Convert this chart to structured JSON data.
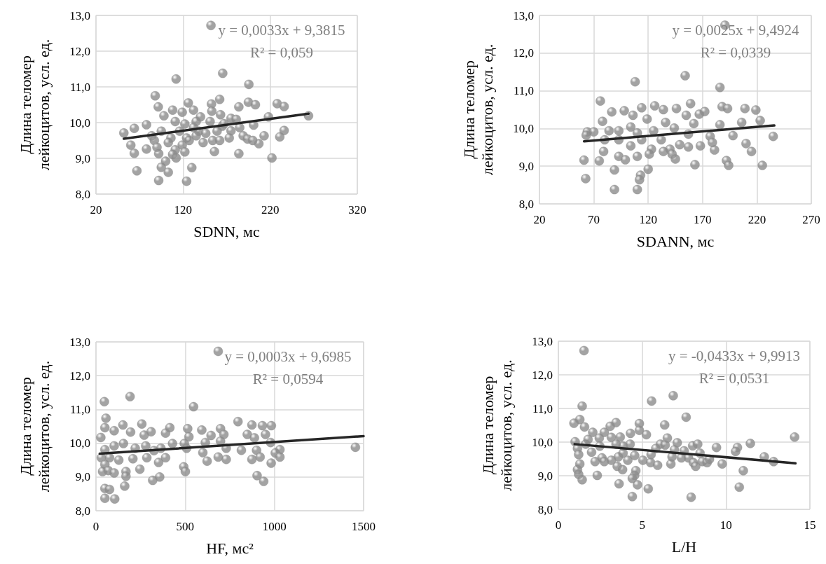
{
  "chart_data": [
    {
      "type": "scatter",
      "xlabel": "SDNN, мс",
      "ylabel": "Длина теломер\nлейкоцитов, усл. ед.",
      "xlim": [
        20,
        320
      ],
      "xticks": [
        20,
        120,
        220,
        320
      ],
      "ylim": [
        8,
        13
      ],
      "yticks": [
        {
          "value": 8,
          "label": "8,0"
        },
        {
          "value": 9,
          "label": "9,0"
        },
        {
          "value": 10,
          "label": "10,0"
        },
        {
          "value": 11,
          "label": "11,0"
        },
        {
          "value": 12,
          "label": "12,0"
        },
        {
          "value": 13,
          "label": "13,0"
        }
      ],
      "grid": true,
      "annotations": [
        "y = 0,0033x + 9,3815",
        "R² = 0,059"
      ],
      "series": [
        {
          "marker": "circle",
          "color": "#8c8c8c",
          "x": [
            152,
            165.5,
            112,
            195.5,
            88,
            162,
            195,
            203,
            228,
            236,
            184,
            91.5,
            126,
            152.6,
            264,
            218,
            52,
            64,
            78,
            236,
            213,
            231,
            207,
            201,
            185,
            175,
            60,
            64,
            78,
            92,
            156,
            184,
            222,
            100,
            95,
            103,
            130,
            67,
            92,
            124,
            112,
            98,
            108,
            119,
            132,
            140,
            153,
            163,
            122,
            135,
            151,
            165,
            175,
            189,
            194,
            200,
            95,
            106,
            116,
            124,
            135,
            143,
            154,
            162,
            173,
            87,
            90,
            103,
            111,
            119,
            127,
            138,
            146,
            159,
            167,
            181,
            84,
            108,
            122,
            132,
            111
          ],
          "values": [
            12.72,
            11.38,
            11.22,
            11.07,
            10.75,
            10.65,
            10.57,
            10.5,
            10.53,
            10.45,
            10.44,
            10.44,
            10.55,
            10.52,
            10.19,
            10.16,
            9.71,
            9.84,
            9.94,
            9.78,
            9.63,
            9.6,
            9.41,
            9.93,
            9.86,
            10.12,
            9.37,
            9.14,
            9.26,
            9.13,
            9.19,
            9.13,
            9.01,
            8.92,
            8.75,
            8.61,
            8.74,
            8.65,
            8.38,
            8.36,
            9.01,
            10.19,
            10.35,
            10.29,
            10.35,
            10.16,
            10.32,
            10.22,
            9.96,
            10.03,
            10.03,
            9.9,
            9.77,
            9.63,
            9.54,
            9.5,
            9.76,
            9.57,
            9.76,
            9.57,
            9.63,
            9.44,
            9.5,
            9.5,
            9.57,
            9.5,
            9.31,
            9.44,
            9.24,
            9.37,
            9.5,
            9.76,
            9.7,
            9.76,
            9.97,
            10.09,
            9.63,
            9.11,
            9.18,
            9.86,
            10.03
          ]
        },
        {
          "type": "line",
          "color": "#262626",
          "x": [
            52,
            264
          ],
          "values": [
            9.55,
            10.25
          ]
        }
      ]
    },
    {
      "type": "scatter",
      "xlabel": "SDANN, мс",
      "ylabel": "Длина теломер\nлейкоцитов, усл. ед.",
      "xlim": [
        20,
        270
      ],
      "xticks": [
        20,
        70,
        120,
        170,
        220,
        270
      ],
      "ylim": [
        8,
        13
      ],
      "yticks": [
        {
          "value": 8,
          "label": "8,0"
        },
        {
          "value": 9,
          "label": "9,0"
        },
        {
          "value": 10,
          "label": "10,0"
        },
        {
          "value": 11,
          "label": "11,0"
        },
        {
          "value": 12,
          "label": "12,0"
        },
        {
          "value": 13,
          "label": "13,0"
        }
      ],
      "grid": true,
      "annotations": [
        "y = 0,0025x + 9,4924",
        "R² = 0,0339"
      ],
      "series": [
        {
          "marker": "circle",
          "color": "#8c8c8c",
          "x": [
            190.6,
            154,
            108,
            186,
            76,
            159,
            126,
            114,
            188,
            193,
            209,
            219,
            206,
            223,
            186,
            235,
            198,
            210,
            215,
            181,
            61,
            62.5,
            75,
            89,
            89,
            110,
            113,
            120,
            112,
            145,
            163,
            192,
            194,
            225,
            64,
            70,
            63,
            78,
            86.5,
            98,
            106,
            119,
            134,
            146,
            155,
            167,
            172,
            136,
            162,
            93,
            104,
            125,
            144,
            157,
            177,
            80,
            93,
            104,
            114,
            123,
            132,
            140,
            149,
            157,
            168,
            79,
            93,
            99,
            110,
            121,
            134,
            142,
            179,
            84,
            110
          ],
          "values": [
            12.74,
            11.4,
            11.24,
            11.09,
            10.73,
            10.66,
            10.6,
            10.55,
            10.58,
            10.53,
            10.53,
            10.49,
            10.16,
            10.21,
            10.1,
            9.79,
            9.81,
            9.6,
            9.39,
            9.43,
            9.16,
            8.67,
            9.14,
            8.9,
            8.38,
            8.38,
            8.76,
            8.92,
            8.64,
            9.19,
            9.04,
            9.15,
            9.02,
            9.02,
            9.91,
            9.91,
            9.82,
            10.19,
            10.44,
            10.47,
            10.35,
            10.25,
            10.5,
            10.53,
            10.35,
            10.38,
            10.45,
            10.16,
            10.13,
            9.94,
            10.04,
            9.94,
            10.01,
            9.85,
            9.79,
            9.7,
            9.7,
            9.54,
            9.7,
            9.45,
            9.7,
            9.45,
            9.57,
            9.51,
            9.54,
            9.39,
            9.26,
            9.17,
            9.26,
            9.32,
            9.39,
            9.32,
            9.63,
            9.94,
            9.88
          ]
        },
        {
          "type": "line",
          "color": "#262626",
          "x": [
            61,
            236
          ],
          "values": [
            9.66,
            10.08
          ]
        }
      ]
    },
    {
      "type": "scatter",
      "xlabel": "HF, мс²",
      "ylabel": "Длина теломер\nлейкоцитов, усл. ед.",
      "xlim": [
        0,
        1500
      ],
      "xticks": [
        0,
        500,
        1000,
        1500
      ],
      "ylim": [
        8,
        13
      ],
      "yticks": [
        {
          "value": 8,
          "label": "8,0"
        },
        {
          "value": 9,
          "label": "9,0"
        },
        {
          "value": 10,
          "label": "10,0"
        },
        {
          "value": 11,
          "label": "11,0"
        },
        {
          "value": 12,
          "label": "12,0"
        },
        {
          "value": 13,
          "label": "13,0"
        }
      ],
      "grid": true,
      "annotations": [
        "y = 0,0003x + 9,6985",
        "R² = 0,0594"
      ],
      "series": [
        {
          "marker": "circle",
          "color": "#8c8c8c",
          "x": [
            685,
            191,
            47,
            547,
            56,
            796,
            151,
            257,
            874,
            933,
            983,
            50,
            414,
            514,
            593,
            698,
            1454,
            27,
            102,
            194,
            309,
            270,
            390,
            521,
            645,
            717,
            848,
            888,
            950,
            979,
            1031,
            1005,
            1031,
            900,
            815,
            920,
            982,
            874,
            730,
            685,
            623,
            599,
            730,
            613,
            698,
            508,
            429,
            364,
            279,
            220,
            154,
            102,
            50,
            30,
            76,
            128,
            207,
            285,
            351,
            390,
            50,
            37,
            69,
            102,
            168,
            168,
            246,
            492,
            501,
            318,
            357,
            161,
            50,
            76,
            50,
            105,
            903,
            940,
            495,
            325
          ],
          "values": [
            12.72,
            11.38,
            11.23,
            11.08,
            10.74,
            10.64,
            10.54,
            10.57,
            10.54,
            10.52,
            10.52,
            10.46,
            10.46,
            10.43,
            10.39,
            10.43,
            9.88,
            10.17,
            10.37,
            10.33,
            10.34,
            10.24,
            10.3,
            10.19,
            10.23,
            10.26,
            10.26,
            10.16,
            10.26,
            10.02,
            9.81,
            9.71,
            9.59,
            9.79,
            9.79,
            9.59,
            9.41,
            9.52,
            9.52,
            9.59,
            9.47,
            9.72,
            9.85,
            10.02,
            10.06,
            9.85,
            9.99,
            9.85,
            9.92,
            9.85,
            9.99,
            9.92,
            9.81,
            9.57,
            9.57,
            9.5,
            9.54,
            9.57,
            9.43,
            9.57,
            9.37,
            9.16,
            9.19,
            9.12,
            9.16,
            9.02,
            9.23,
            9.3,
            9.16,
            8.9,
            9.0,
            8.73,
            8.66,
            8.63,
            8.37,
            8.35,
            9.04,
            8.87,
            9.99,
            9.78
          ]
        },
        {
          "type": "line",
          "color": "#262626",
          "x": [
            21,
            1500
          ],
          "values": [
            9.69,
            10.21
          ]
        }
      ]
    },
    {
      "type": "scatter",
      "xlabel": "L/H",
      "ylabel": "Длина теломер\nлейкоцитов, усл. ед.",
      "xlim": [
        0,
        15
      ],
      "xticks": [
        0,
        5,
        10,
        15
      ],
      "ylim": [
        8,
        13
      ],
      "yticks": [
        {
          "value": 8,
          "label": "8,0"
        },
        {
          "value": 9,
          "label": "9,0"
        },
        {
          "value": 10,
          "label": "10,0"
        },
        {
          "value": 11,
          "label": "11,0"
        },
        {
          "value": 12,
          "label": "12,0"
        },
        {
          "value": 13,
          "label": "13,0"
        }
      ],
      "grid": true,
      "annotations": [
        "y = -0,0433x + 9,9913",
        "R² = 0,0531"
      ],
      "series": [
        {
          "marker": "circle",
          "color": "#8c8c8c",
          "x": [
            1.53,
            1.42,
            5.56,
            6.85,
            7.62,
            6.34,
            1.28,
            0.93,
            1.56,
            3.44,
            3.09,
            4.83,
            4.83,
            4.3,
            5.25,
            2.05,
            2.74,
            3.69,
            2.44,
            3.16,
            14.09,
            6.5,
            7.09,
            8.01,
            8.31,
            9.43,
            10.68,
            10.57,
            11.45,
            12.28,
            12.84,
            9.77,
            11.03,
            10.79,
            7.92,
            4.41,
            5.36,
            3.62,
            4.72,
            2.32,
            1.42,
            1.21,
            1.14,
            4.55,
            4.41,
            4.62,
            3.83,
            3.51,
            1.28,
            1.0,
            1.14,
            1.21,
            1.63,
            1.98,
            2.19,
            2.6,
            2.74,
            3.16,
            3.58,
            3.86,
            4.14,
            4.55,
            5.04,
            5.53,
            5.5,
            5.92,
            6.09,
            6.37,
            6.71,
            6.78,
            7.34,
            7.76,
            8.05,
            8.19,
            8.59,
            8.87,
            9.01,
            8.45,
            7.5,
            6.92,
            5.81,
            4.28,
            3.86,
            3.44,
            2.47,
            1.77
          ],
          "values": [
            12.72,
            11.07,
            11.22,
            11.38,
            10.74,
            10.51,
            10.67,
            10.56,
            10.45,
            10.58,
            10.47,
            10.55,
            10.35,
            10.26,
            10.22,
            10.29,
            10.29,
            10.15,
            10.12,
            10.14,
            10.15,
            10.12,
            9.98,
            9.89,
            9.94,
            9.84,
            9.84,
            9.72,
            9.96,
            9.56,
            9.42,
            9.35,
            9.15,
            8.66,
            8.36,
            8.38,
            8.61,
            8.76,
            8.73,
            9.01,
            8.88,
            9.04,
            9.18,
            9.01,
            8.92,
            9.15,
            9.18,
            9.28,
            9.35,
            10.01,
            9.81,
            9.63,
            9.94,
            9.7,
            9.42,
            9.53,
            9.42,
            9.46,
            9.56,
            9.67,
            9.46,
            9.6,
            9.46,
            9.63,
            9.39,
            9.31,
            9.94,
            9.91,
            9.35,
            9.56,
            9.53,
            9.53,
            9.39,
            9.28,
            9.42,
            9.39,
            9.49,
            9.67,
            9.74,
            9.77,
            9.81,
            9.94,
            9.88,
            9.94,
            9.88,
            10.08
          ]
        },
        {
          "type": "line",
          "color": "#262626",
          "x": [
            0.97,
            14.14
          ],
          "values": [
            9.94,
            9.37
          ]
        }
      ]
    }
  ]
}
